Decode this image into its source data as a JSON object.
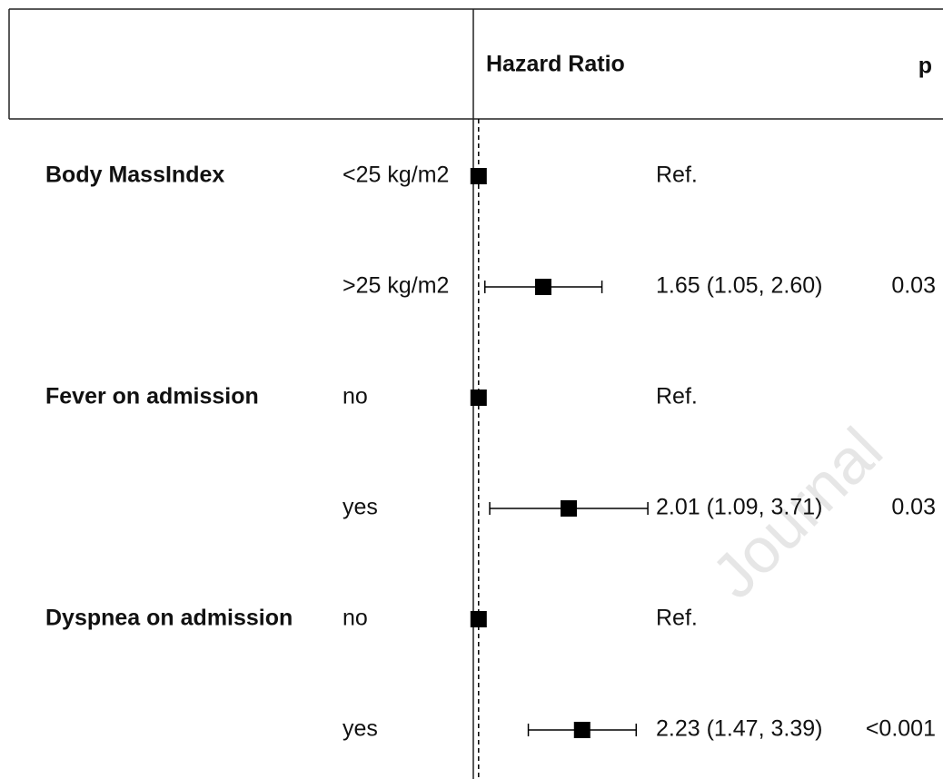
{
  "chart_data": {
    "type": "forest",
    "header": {
      "estimate": "Hazard Ratio",
      "p": "p"
    },
    "rows": [
      {
        "group": "Body MassIndex",
        "level": "<25 kg/m2",
        "estimate": 1,
        "label": "Ref."
      },
      {
        "level": ">25 kg/m2",
        "estimate": 1.65,
        "lower": 1.05,
        "upper": 2.6,
        "label": "1.65 (1.05, 2.60)",
        "p": "0.03"
      },
      {
        "group": "Fever on admission",
        "level": "no",
        "estimate": 1,
        "label": "Ref."
      },
      {
        "level": "yes",
        "estimate": 2.01,
        "lower": 1.09,
        "upper": 3.71,
        "label": "2.01 (1.09, 3.71)",
        "p": "0.03"
      },
      {
        "group": "Dyspnea on admission",
        "level": "no",
        "estimate": 1,
        "label": "Ref."
      },
      {
        "level": "yes",
        "estimate": 2.23,
        "lower": 1.47,
        "upper": 3.39,
        "label": "2.23 (1.47, 3.39)",
        "p": "<0.001"
      }
    ],
    "xlim": [
      0.96,
      3.76
    ],
    "log_x": true,
    "ref_line": 1,
    "color": "#000000"
  },
  "watermark": "Journal"
}
